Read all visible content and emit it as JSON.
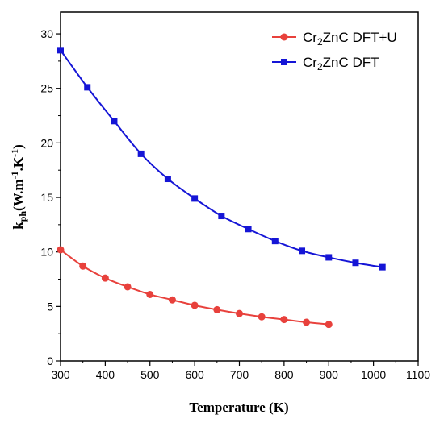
{
  "chart_data": {
    "type": "line",
    "xlabel": "Temperature (K)",
    "ylabel": {
      "base": "k",
      "sub": "ph",
      "paren_open": "(W.m",
      "sup1": "-1",
      "mid": ".K",
      "sup2": "-1",
      "paren_close": ")"
    },
    "xlim": [
      300,
      1100
    ],
    "ylim": [
      0,
      32
    ],
    "xticks": [
      300,
      400,
      500,
      600,
      700,
      800,
      900,
      1000,
      1100
    ],
    "yticks": [
      0,
      5,
      10,
      15,
      20,
      25,
      30
    ],
    "legend_position": "top-right",
    "series": [
      {
        "name": {
          "base": "Cr",
          "sub": "2",
          "rest": "ZnC DFT+U"
        },
        "color": "#e8413c",
        "marker": "circle",
        "x": [
          300,
          350,
          400,
          450,
          500,
          550,
          600,
          650,
          700,
          750,
          800,
          850,
          900
        ],
        "y": [
          10.2,
          8.7,
          7.6,
          6.8,
          6.1,
          5.6,
          5.1,
          4.7,
          4.35,
          4.05,
          3.8,
          3.55,
          3.35
        ]
      },
      {
        "name": {
          "base": "Cr",
          "sub": "2",
          "rest": "ZnC DFT"
        },
        "color": "#1515d6",
        "marker": "square",
        "x": [
          300,
          360,
          420,
          480,
          540,
          600,
          660,
          720,
          780,
          840,
          900,
          960,
          1020
        ],
        "y": [
          28.5,
          25.1,
          22.0,
          19.0,
          16.7,
          14.9,
          13.3,
          12.1,
          11.0,
          10.1,
          9.5,
          9.0,
          8.6
        ]
      }
    ]
  }
}
